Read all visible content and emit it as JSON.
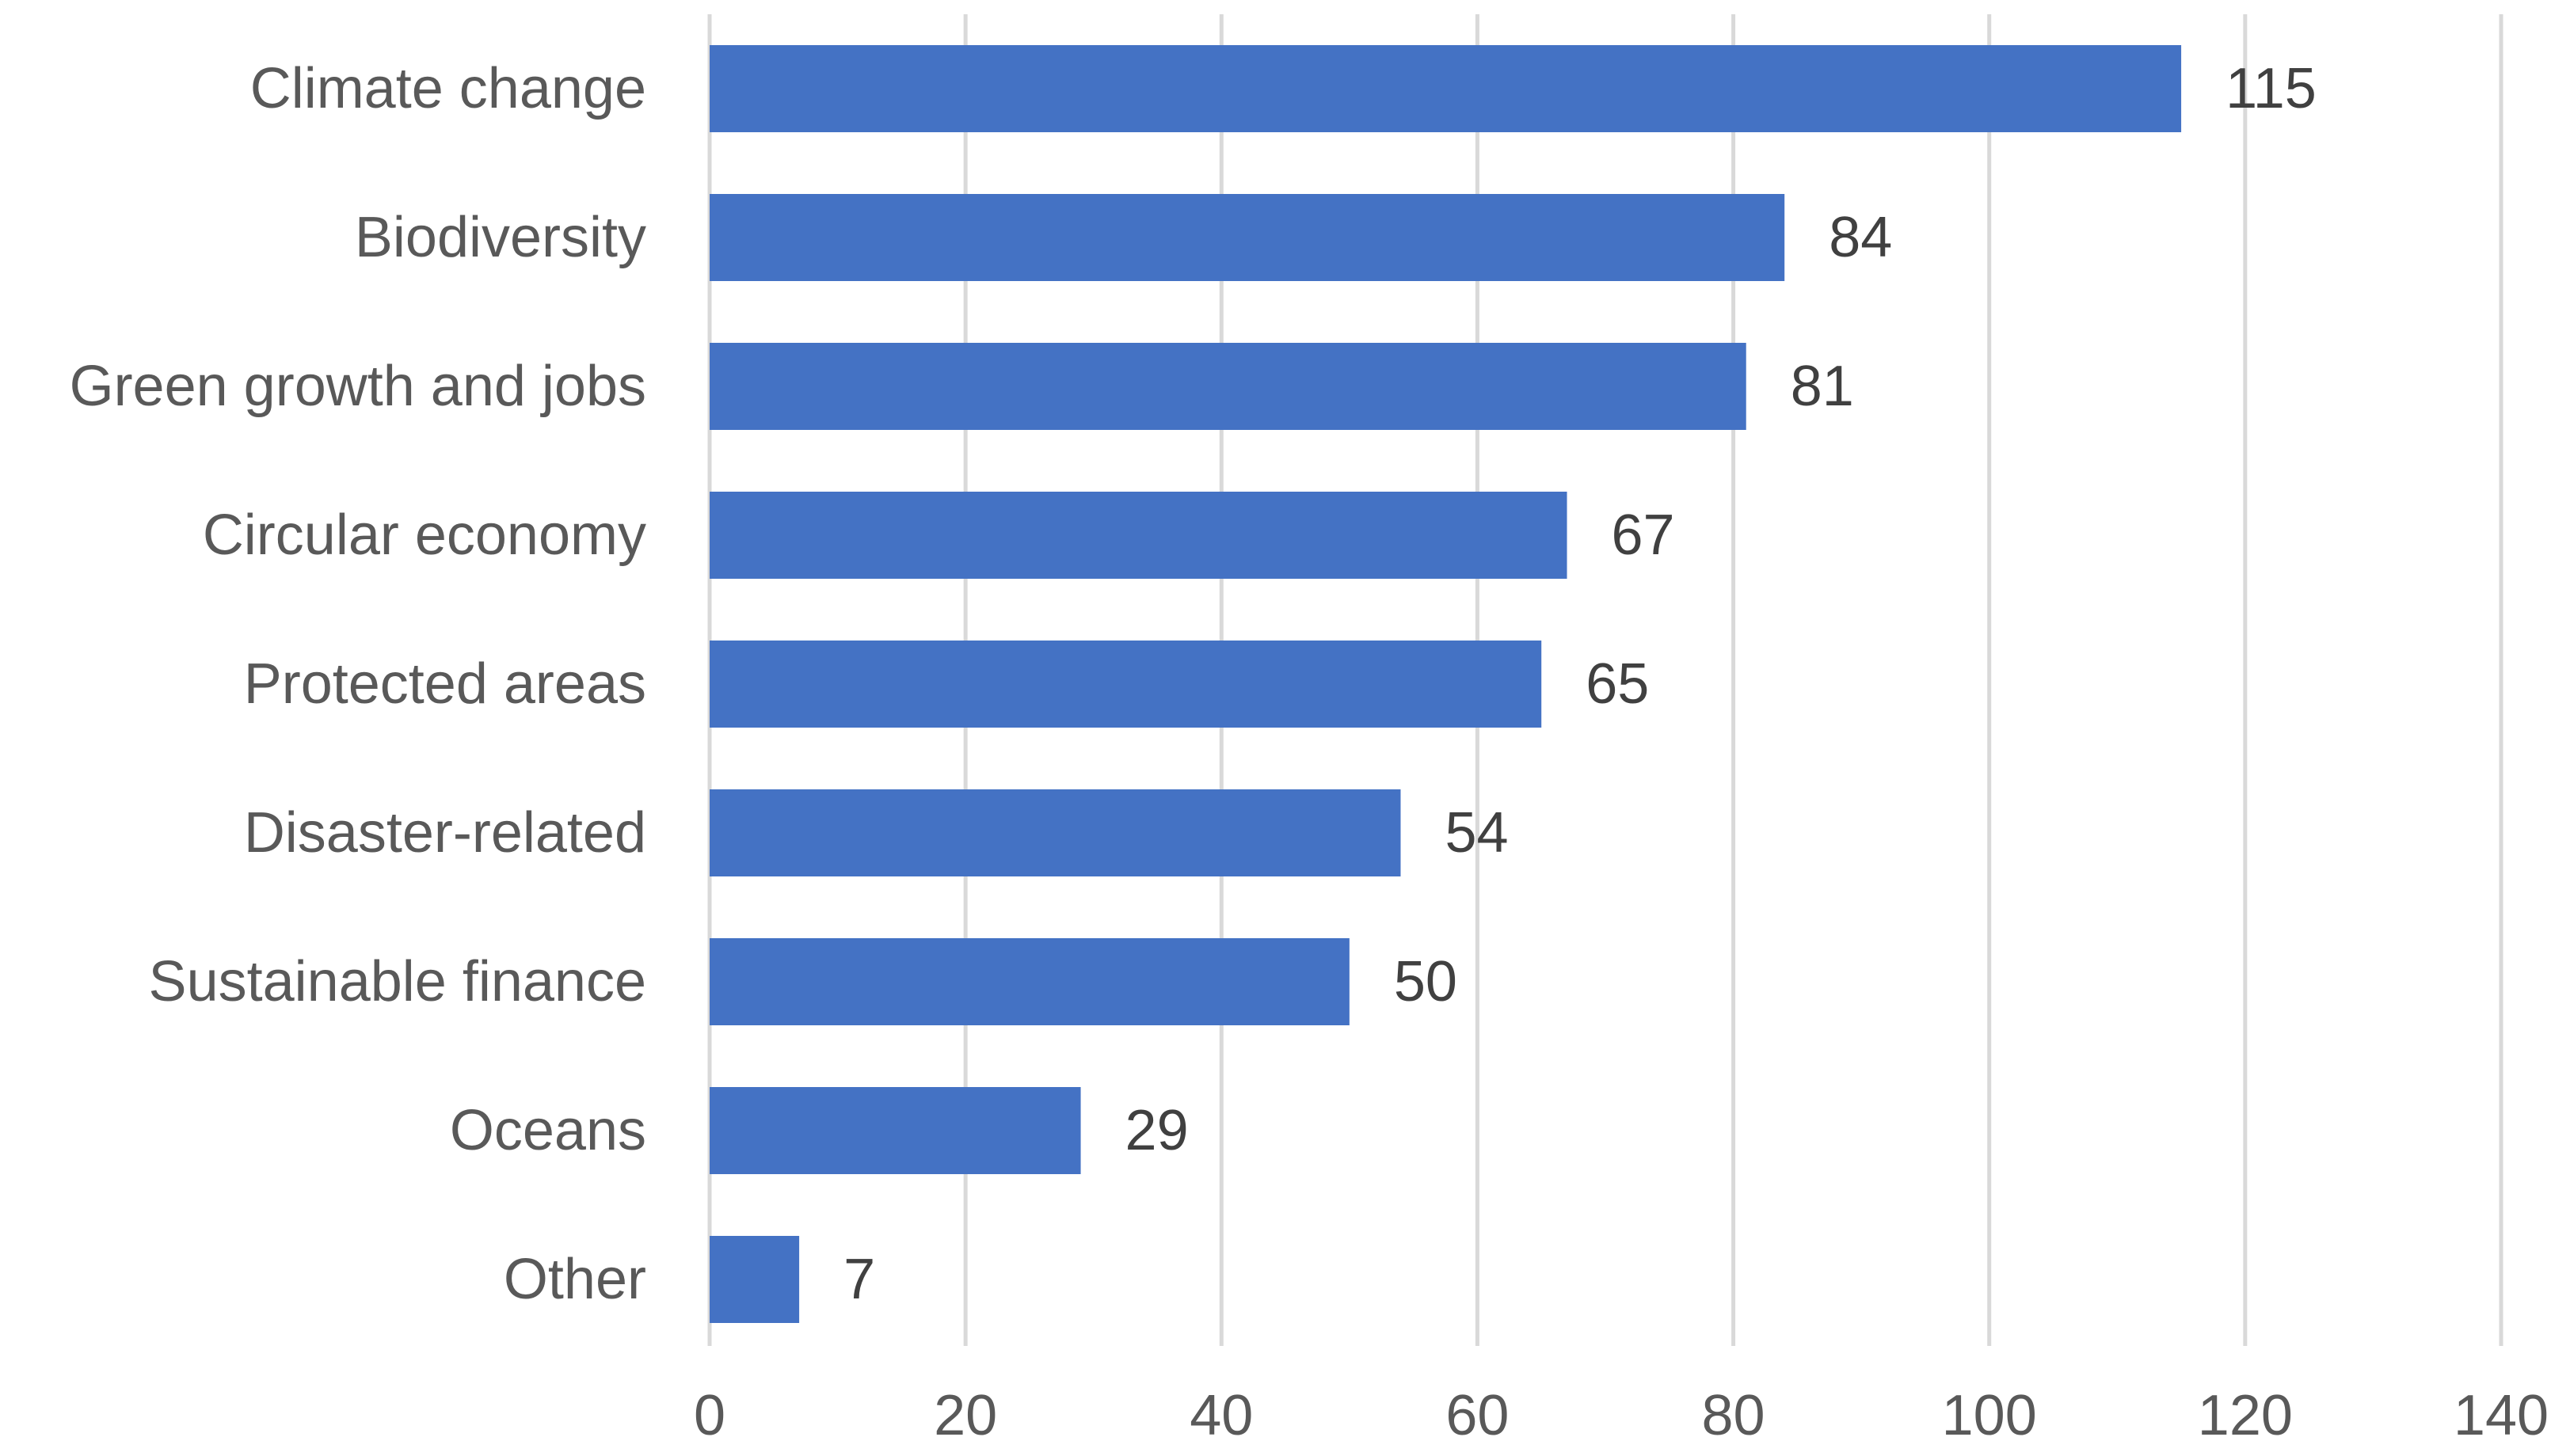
{
  "chart_data": {
    "type": "bar",
    "orientation": "horizontal",
    "categories": [
      "Climate change",
      "Biodiversity",
      "Green growth and jobs",
      "Circular economy",
      "Protected areas",
      "Disaster-related",
      "Sustainable finance",
      "Oceans",
      "Other"
    ],
    "values": [
      115,
      84,
      81,
      67,
      65,
      54,
      50,
      29,
      7
    ],
    "xlim": [
      0,
      140
    ],
    "x_ticks": [
      "0",
      "20",
      "40",
      "60",
      "80",
      "100",
      "120",
      "140"
    ],
    "grid": "vertical",
    "legend": "none",
    "bar_color": "#4472c4",
    "gridline_color": "#d9d9d9",
    "data_labels": true
  }
}
